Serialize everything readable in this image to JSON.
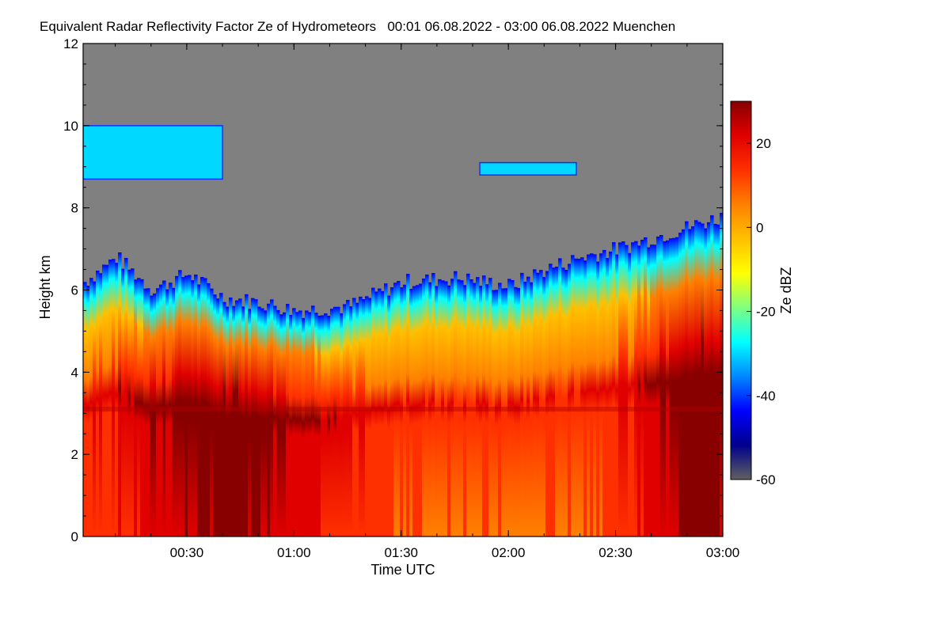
{
  "chart_data": {
    "type": "heatmap",
    "title": "Equivalent Radar Reflectivity Factor Ze of Hydrometeors   00:01 06.08.2022 - 03:00 06.08.2022 Muenchen",
    "xlabel": "Time UTC",
    "ylabel": "Height km",
    "x_range": [
      "00:01",
      "03:00"
    ],
    "x_ticks": [
      "00:30",
      "01:00",
      "01:30",
      "02:00",
      "02:30",
      "03:00"
    ],
    "y_range": [
      0,
      12
    ],
    "y_ticks": [
      "0",
      "2",
      "4",
      "6",
      "8",
      "10",
      "12"
    ],
    "colorbar": {
      "label": "Ze dBZ",
      "range": [
        -60,
        30
      ],
      "ticks": [
        "20",
        "0",
        "-20",
        "-40",
        "-60"
      ],
      "no_signal_color": "#808080"
    },
    "colormap": [
      "#606060",
      "#00008c",
      "#0000ff",
      "#0088ff",
      "#00ffff",
      "#80ff80",
      "#ffff00",
      "#ffc000",
      "#ff8000",
      "#ff3000",
      "#e00000",
      "#880000"
    ],
    "cloud_top_km": [
      {
        "time": "00:01",
        "top": 6.2
      },
      {
        "time": "00:10",
        "top": 6.8
      },
      {
        "time": "00:20",
        "top": 6.0
      },
      {
        "time": "00:30",
        "top": 6.4
      },
      {
        "time": "00:40",
        "top": 5.8
      },
      {
        "time": "00:50",
        "top": 5.7
      },
      {
        "time": "01:00",
        "top": 5.5
      },
      {
        "time": "01:15",
        "top": 5.6
      },
      {
        "time": "01:30",
        "top": 6.2
      },
      {
        "time": "01:45",
        "top": 6.3
      },
      {
        "time": "02:00",
        "top": 6.1
      },
      {
        "time": "02:10",
        "top": 6.5
      },
      {
        "time": "02:20",
        "top": 6.8
      },
      {
        "time": "02:30",
        "top": 7.0
      },
      {
        "time": "02:45",
        "top": 7.4
      },
      {
        "time": "03:00",
        "top": 7.8
      }
    ],
    "cirrus_layers": [
      {
        "start": "00:01",
        "end": "00:40",
        "bottom_km": 8.7,
        "top_km": 10.0
      },
      {
        "start": "01:52",
        "end": "02:19",
        "bottom_km": 8.8,
        "top_km": 9.1
      }
    ],
    "melting_layer_km": 3.1,
    "max_reflectivity_dBZ": 30
  }
}
